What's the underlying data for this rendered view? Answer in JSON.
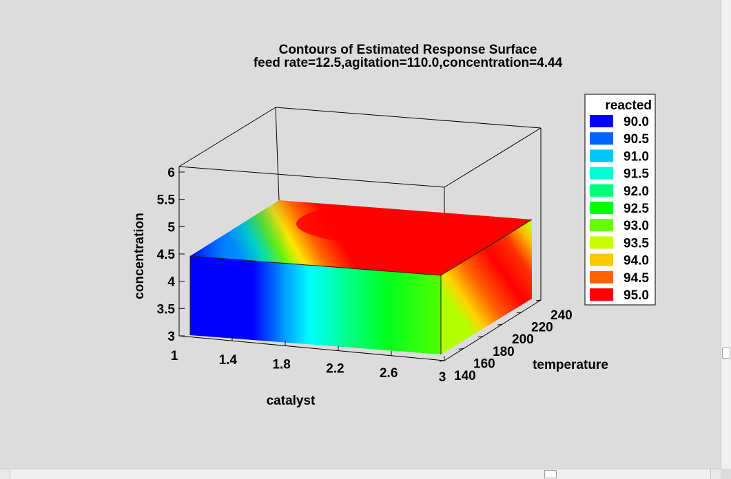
{
  "chart_data": {
    "type": "heatmap",
    "title": "Contours of Estimated Response Surface",
    "subtitle": "feed rate=12.5,agitation=110.0,concentration=4.44",
    "xlabel": "catalyst",
    "ylabel": "temperature",
    "zlabel": "concentration",
    "x_ticks": [
      "1",
      "1.4",
      "1.8",
      "2.2",
      "2.6",
      "3"
    ],
    "y_ticks": [
      "140",
      "160",
      "180",
      "200",
      "220",
      "240"
    ],
    "z_ticks": [
      "3",
      "3.5",
      "4",
      "4.5",
      "5",
      "5.5",
      "6"
    ],
    "xlim": [
      1,
      3
    ],
    "ylim": [
      140,
      240
    ],
    "zlim": [
      3,
      6
    ],
    "slice_concentration": 4.44,
    "legend": {
      "title": "reacted",
      "position": "right",
      "levels": [
        "90.0",
        "90.5",
        "91.0",
        "91.5",
        "92.0",
        "92.5",
        "93.0",
        "93.5",
        "94.0",
        "94.5",
        "95.0"
      ],
      "colors": [
        "#0000ff",
        "#0064ff",
        "#00c8ff",
        "#00ffd2",
        "#00ff78",
        "#00ff00",
        "#64ff00",
        "#c8ff00",
        "#ffc800",
        "#ff6400",
        "#ff0000"
      ]
    },
    "front_face_colors_by_catalyst": {
      "catalyst": [
        1.0,
        1.5,
        1.8,
        2.0,
        2.2,
        2.6,
        3.0
      ],
      "reacted": [
        90.0,
        90.1,
        90.6,
        91.5,
        92.4,
        92.7,
        92.9
      ]
    },
    "right_face_colors_by_temperature": {
      "temperature": [
        140,
        160,
        190,
        220,
        240
      ],
      "reacted": [
        93.2,
        94.1,
        95.0,
        94.6,
        93.5
      ]
    }
  }
}
